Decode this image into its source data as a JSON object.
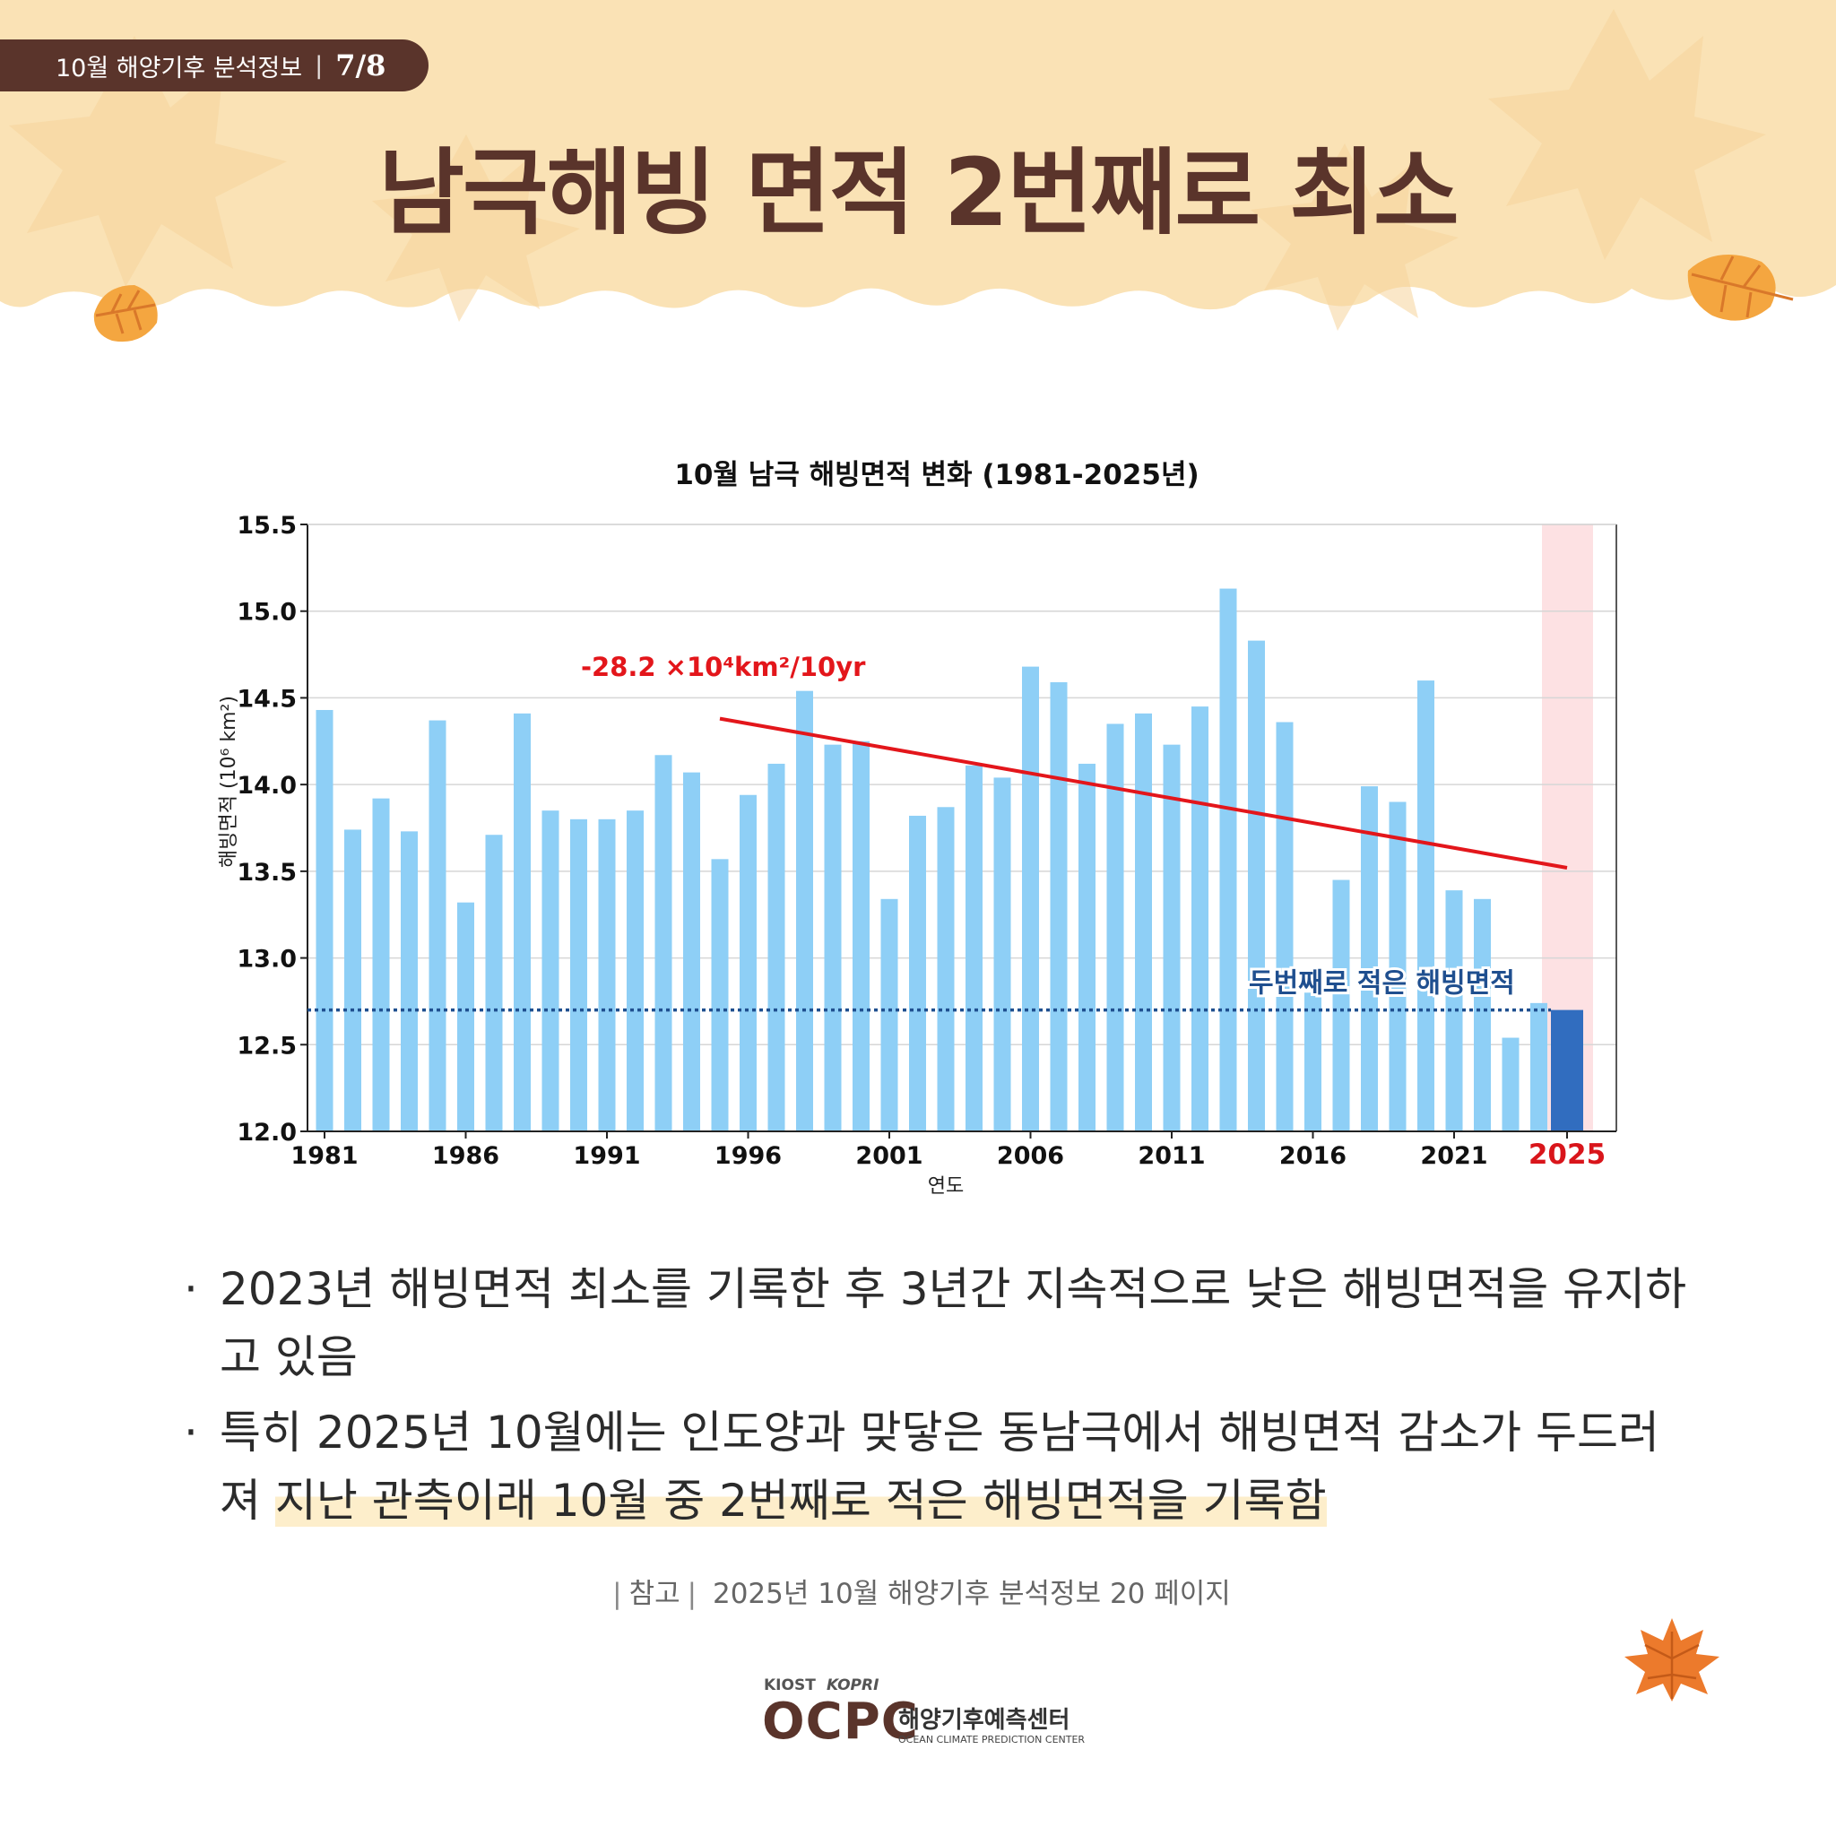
{
  "header": {
    "badge_label": "10월 해양기후 분석정보",
    "badge_page": "7/8",
    "title": "남극해빙 면적 2번째로 최소"
  },
  "chart_data": {
    "type": "bar",
    "title": "10월 남극 해빙면적 변화 (1981-2025년)",
    "xlabel": "연도",
    "ylabel": "해빙면적 (10⁶ km²)",
    "ylim": [
      12.0,
      15.5
    ],
    "yticks": [
      "12.0",
      "12.5",
      "13.0",
      "13.5",
      "14.0",
      "14.5",
      "15.0",
      "15.5"
    ],
    "xticks": [
      "1981",
      "1986",
      "1991",
      "1996",
      "2001",
      "2006",
      "2011",
      "2016",
      "2021",
      "2025"
    ],
    "categories": [
      1981,
      1982,
      1983,
      1984,
      1985,
      1986,
      1987,
      1988,
      1989,
      1990,
      1991,
      1992,
      1993,
      1994,
      1995,
      1996,
      1997,
      1998,
      1999,
      2000,
      2001,
      2002,
      2003,
      2004,
      2005,
      2006,
      2007,
      2008,
      2009,
      2010,
      2011,
      2012,
      2013,
      2014,
      2015,
      2016,
      2017,
      2018,
      2019,
      2020,
      2021,
      2022,
      2023,
      2024,
      2025
    ],
    "values": [
      14.43,
      13.74,
      13.92,
      13.73,
      14.37,
      13.32,
      13.71,
      14.41,
      13.85,
      13.8,
      13.8,
      13.85,
      14.17,
      14.07,
      13.57,
      13.94,
      14.12,
      14.54,
      14.23,
      14.25,
      13.34,
      13.82,
      13.87,
      14.11,
      14.04,
      14.68,
      14.59,
      14.12,
      14.35,
      14.41,
      14.23,
      14.45,
      15.13,
      14.83,
      14.36,
      12.8,
      13.45,
      13.99,
      13.9,
      14.6,
      13.39,
      13.34,
      12.54,
      12.74,
      12.7
    ],
    "highlight_year": 2025,
    "trend": {
      "label": "-28.2  ×10⁴km²/10yr",
      "start": {
        "year": 1995,
        "value": 14.38
      },
      "end": {
        "year": 2025,
        "value": 13.52
      }
    },
    "reference_line": {
      "value": 12.7,
      "label": "두번째로 적은 해빙면적"
    },
    "grid": true,
    "colors": {
      "bar": "#8ecff6",
      "highlight_bar": "#316dbf",
      "highlight_band": "#fde1e3",
      "trend": "#e3161b",
      "reference": "#1f4f8f",
      "highlight_tick": "#d9151b"
    }
  },
  "bullets": [
    {
      "text": "2023년 해빙면적 최소를 기록한 후 3년간 지속적으로 낮은 해빙면적을 유지하고 있음"
    },
    {
      "text_before": "특히 2025년 10월에는 인도양과 맞닿은 동남극에서 해빙면적 감소가 두드러져 ",
      "text_highlight": "지난 관측이래 10월 중 2번째로 적은 해빙면적을 기록함"
    }
  ],
  "reference": {
    "label": "참고",
    "text": "2025년 10월 해양기후 분석정보 20 페이지"
  },
  "logo": {
    "kiost": "KIOST",
    "kopri": "KOPRI",
    "ocpc": "OCPC",
    "name_ko": "해양기후예측센터",
    "name_en": "OCEAN CLIMATE PREDICTION CENTER"
  },
  "theme": {
    "brown": "#5a342b",
    "header_bg": "#fae2b5"
  }
}
